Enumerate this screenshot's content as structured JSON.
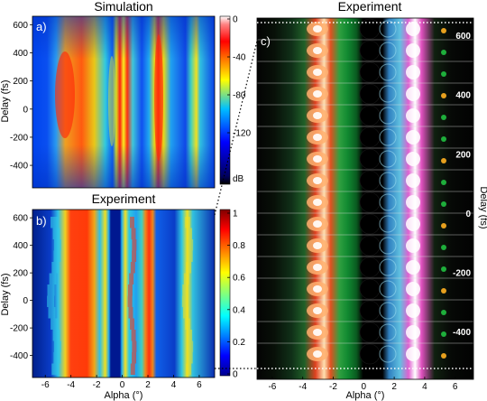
{
  "figure": {
    "panel_a": {
      "label": "a)",
      "title": "Simulation",
      "ylabel": "Delay (fs)",
      "yticks": [
        "600",
        "400",
        "200",
        "0",
        "-200",
        "-400"
      ],
      "xticks": [],
      "colorbar": {
        "ticks": [
          "0",
          "-40",
          "-80",
          "-120"
        ],
        "unit": "dB"
      }
    },
    "panel_b": {
      "label": "b)",
      "title": "Experiment",
      "ylabel": "Delay (fs)",
      "xlabel": "Alpha (°)",
      "yticks": [
        "600",
        "400",
        "200",
        "0",
        "-200",
        "-400"
      ],
      "xticks": [
        "-6",
        "-4",
        "-2",
        "0",
        "2",
        "4",
        "6"
      ],
      "colorbar": {
        "ticks": [
          "1",
          "0.8",
          "0.6",
          "0.4",
          "0.2",
          "0"
        ]
      }
    },
    "panel_c": {
      "label": "c)",
      "title": "Experiment",
      "ylabel": "Delay (fs)",
      "xlabel": "Alpha (°)",
      "yticks": [
        "600",
        "400",
        "200",
        "0",
        "-200",
        "-400"
      ],
      "xticks": [
        "-6",
        "-4",
        "-2",
        "0",
        "2",
        "4",
        "6"
      ]
    }
  },
  "chart_data": [
    {
      "type": "heatmap",
      "title": "Simulation",
      "ylabel": "Delay (fs)",
      "ylim": [
        -560,
        660
      ],
      "xlim": [
        -7,
        7.2
      ],
      "colorbar_range_db": [
        -160,
        0
      ],
      "bands": [
        {
          "alpha": -3.9,
          "value": 0.72
        },
        {
          "alpha": -0.6,
          "value": 0.62
        },
        {
          "alpha": 0.2,
          "value": 1.0
        },
        {
          "alpha": 1.0,
          "value": 0.66
        },
        {
          "alpha": 2.6,
          "value": 0.82
        },
        {
          "alpha": 5.6,
          "value": 0.62
        }
      ]
    },
    {
      "type": "heatmap",
      "title": "Experiment",
      "xlabel": "Alpha (°)",
      "ylabel": "Delay (fs)",
      "ylim": [
        -560,
        660
      ],
      "xlim": [
        -7,
        7.2
      ],
      "colorbar_range": [
        0,
        1
      ],
      "bands": [
        {
          "alpha": -3.7,
          "value": 0.9
        },
        {
          "alpha": -1.6,
          "value": 0.65
        },
        {
          "alpha": 0.1,
          "value": 0.85
        },
        {
          "alpha": 2.5,
          "value": 0.92
        },
        {
          "alpha": 5.4,
          "value": 0.7
        }
      ]
    }
  ]
}
